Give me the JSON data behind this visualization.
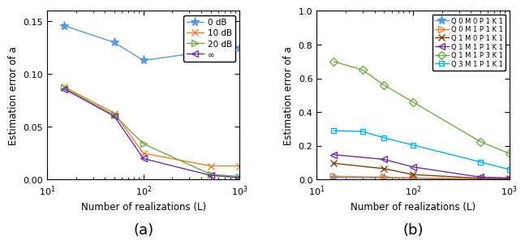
{
  "x_values": [
    15,
    50,
    100,
    500,
    1000
  ],
  "panel_a": {
    "xlabel": "Number of realizations (L)",
    "ylabel": "Estimation error of a",
    "xlim": [
      10,
      1000
    ],
    "ylim": [
      0,
      0.16
    ],
    "yticks": [
      0,
      0.05,
      0.1,
      0.15
    ],
    "series": [
      {
        "label": "0 dB",
        "color": "#5B9BD5",
        "marker": "*",
        "markersize": 8,
        "y": [
          0.146,
          0.13,
          0.113,
          0.122,
          0.125
        ]
      },
      {
        "label": "10 dB",
        "color": "#ED7D31",
        "marker": "x",
        "markersize": 6,
        "y": [
          0.088,
          0.063,
          0.025,
          0.013,
          0.013
        ]
      },
      {
        "label": "20 dB",
        "color": "#70AD47",
        "marker": ">",
        "markersize": 6,
        "y": [
          0.087,
          0.061,
          0.034,
          0.005,
          0.003
        ]
      },
      {
        "label": "∞",
        "color": "#7030A0",
        "marker": "<",
        "markersize": 6,
        "y": [
          0.086,
          0.06,
          0.02,
          0.004,
          0.002
        ]
      }
    ]
  },
  "panel_b": {
    "xlabel": "Number of realizations (L)",
    "ylabel": "Estimation error of a",
    "xlim": [
      10,
      1000
    ],
    "ylim": [
      0,
      1.0
    ],
    "yticks": [
      0,
      0.2,
      0.4,
      0.6,
      0.8,
      1.0
    ],
    "series": [
      {
        "label": "Q 0 M 0 P 1 K 1",
        "color": "#5B9BD5",
        "marker": "*",
        "markersize": 8,
        "x": [
          15,
          50,
          100,
          500,
          1000
        ],
        "y": [
          0.012,
          0.01,
          0.008,
          0.003,
          0.002
        ]
      },
      {
        "label": "Q 0 M 1 P 1 K 1",
        "color": "#ED7D31",
        "marker": ">",
        "markersize": 6,
        "x": [
          15,
          50,
          100,
          500,
          1000
        ],
        "y": [
          0.02,
          0.015,
          0.01,
          0.004,
          0.002
        ]
      },
      {
        "label": "Q 1 M 0 P 1 K 1",
        "color": "#843C0C",
        "marker": "x",
        "markersize": 6,
        "x": [
          15,
          50,
          100,
          500,
          1000
        ],
        "y": [
          0.097,
          0.065,
          0.03,
          0.008,
          0.005
        ]
      },
      {
        "label": "Q 1 M 1 P 1 K 1",
        "color": "#7030A0",
        "marker": "<",
        "markersize": 6,
        "x": [
          15,
          50,
          100,
          500,
          1000
        ],
        "y": [
          0.148,
          0.12,
          0.075,
          0.015,
          0.01
        ]
      },
      {
        "label": "Q 1 M 1 P 3 K 1",
        "color": "#70AD47",
        "marker": "D",
        "markersize": 5,
        "x": [
          15,
          30,
          50,
          100,
          500,
          1000
        ],
        "y": [
          0.7,
          0.65,
          0.56,
          0.46,
          0.225,
          0.155
        ]
      },
      {
        "label": "Q 3 M 1 P 1 K 1",
        "color": "#00B0F0",
        "marker": "s",
        "markersize": 5,
        "x": [
          15,
          30,
          50,
          100,
          500,
          1000
        ],
        "y": [
          0.29,
          0.285,
          0.248,
          0.205,
          0.105,
          0.06
        ]
      }
    ]
  },
  "figure": {
    "label_a": "(a)",
    "label_b": "(b)",
    "fontsize_label": 13
  }
}
